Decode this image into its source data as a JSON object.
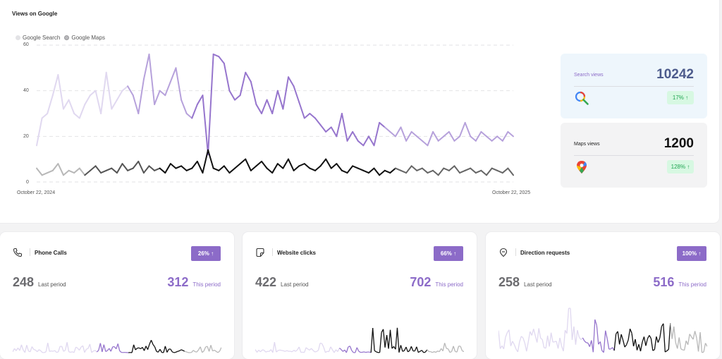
{
  "main": {
    "title": "Views on Google",
    "legend": [
      "Google Search",
      "Google Maps"
    ],
    "y_ticks": [
      "60",
      "40",
      "20",
      "0"
    ],
    "x_start": "October 22, 2024",
    "x_end": "October 22, 2025",
    "colors": {
      "search_light": "#e0d8f0",
      "search_mid": "#b6a1db",
      "search_dark": "#9675cd",
      "maps_light": "#b8b8b8",
      "maps_dark": "#111111"
    }
  },
  "chart_data": {
    "type": "line",
    "x_range": [
      "October 22, 2024",
      "October 22, 2025"
    ],
    "ylim": [
      0,
      60
    ],
    "series": [
      {
        "name": "Google Search",
        "values": [
          16,
          28,
          30,
          38,
          47,
          32,
          36,
          30,
          28,
          34,
          38,
          40,
          30,
          48,
          32,
          36,
          40,
          42,
          38,
          30,
          45,
          56,
          34,
          40,
          38,
          44,
          50,
          36,
          30,
          28,
          34,
          38,
          12,
          56,
          55,
          52,
          40,
          36,
          38,
          48,
          44,
          34,
          30,
          36,
          30,
          40,
          32,
          46,
          42,
          35,
          28,
          30,
          28,
          25,
          22,
          24,
          20,
          30,
          18,
          22,
          18,
          16,
          20,
          16,
          26,
          24,
          22,
          20,
          24,
          18,
          22,
          20,
          18,
          16,
          22,
          18,
          20,
          22,
          18,
          20,
          26,
          20,
          18,
          22,
          20,
          18,
          20,
          18,
          22,
          20
        ]
      },
      {
        "name": "Google Maps",
        "values": [
          6,
          3,
          4,
          5,
          8,
          3,
          5,
          4,
          6,
          3,
          5,
          7,
          4,
          5,
          6,
          4,
          8,
          5,
          6,
          9,
          4,
          7,
          5,
          6,
          4,
          8,
          6,
          7,
          5,
          6,
          9,
          4,
          14,
          6,
          5,
          7,
          4,
          6,
          8,
          10,
          5,
          7,
          9,
          6,
          4,
          8,
          6,
          10,
          5,
          7,
          8,
          6,
          5,
          7,
          10,
          6,
          8,
          5,
          4,
          7,
          6,
          5,
          4,
          6,
          3,
          5,
          4,
          6,
          5,
          4,
          7,
          5,
          6,
          4,
          5,
          3,
          6,
          5,
          7,
          4,
          5,
          6,
          4,
          5,
          3,
          6,
          5,
          4,
          6,
          3
        ]
      }
    ]
  },
  "stats": {
    "search": {
      "label": "Search views",
      "value": "10242",
      "change": "17% ↑",
      "icon": "google-search-icon",
      "label_color": "#8c6bc8",
      "value_color": "#4d5b8c"
    },
    "maps": {
      "label": "Maps views",
      "value": "1200",
      "change": "128% ↑",
      "icon": "google-maps-pin-icon",
      "label_color": "#222222",
      "value_color": "#111111"
    }
  },
  "cards": [
    {
      "title": "Phone Calls",
      "icon": "phone-icon",
      "badge": "26% ↑",
      "last_value": "248",
      "last_label": "Last period",
      "this_value": "312",
      "this_label": "This period"
    },
    {
      "title": "Website clicks",
      "icon": "website-icon",
      "badge": "66% ↑",
      "last_value": "422",
      "last_label": "Last period",
      "this_value": "702",
      "this_label": "This period"
    },
    {
      "title": "Direction requests",
      "icon": "direction-icon",
      "badge": "100% ↑",
      "last_value": "258",
      "last_label": "Last period",
      "this_value": "516",
      "this_label": "This period"
    }
  ]
}
